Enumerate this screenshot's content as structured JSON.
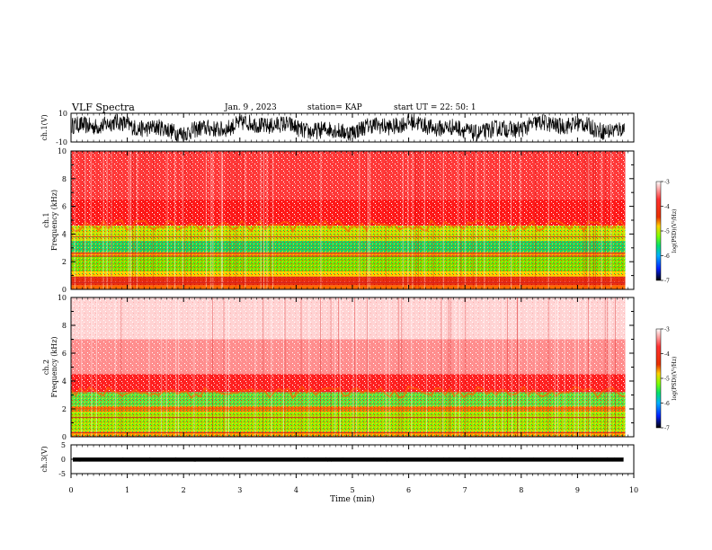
{
  "header": {
    "title": "VLF Spectra",
    "date": "Jan. 9 , 2023",
    "station": "station= KAP",
    "start": "start UT =  22: 50: 1"
  },
  "chart_data": [
    {
      "type": "line",
      "ylabel": "ch.1(V)",
      "ylim": [
        -10,
        10
      ],
      "y_ticks": [
        "10",
        "-10"
      ],
      "xlim": [
        0,
        9.85
      ],
      "color": "#000000"
    },
    {
      "type": "heatmap",
      "ylabel": "ch.1\nFrequency (kHz)",
      "ylim": [
        0,
        10
      ],
      "y_ticks": [
        "0",
        "2",
        "4",
        "6",
        "8",
        "10"
      ],
      "xlim": [
        0,
        9.85
      ],
      "colorbar": {
        "label": "log(PSD)(V²/Hz)",
        "range": [
          -7,
          -3
        ],
        "ticks": [
          "-3",
          "-4",
          "-5",
          "-6",
          "-7"
        ]
      }
    },
    {
      "type": "heatmap",
      "ylabel": "ch.2\nFrequency (kHz)",
      "ylim": [
        0,
        10
      ],
      "y_ticks": [
        "0",
        "2",
        "4",
        "6",
        "8",
        "10"
      ],
      "xlim": [
        0,
        9.85
      ],
      "colorbar": {
        "label": "log(PSD)(V²/Hz)",
        "range": [
          -7,
          -3
        ],
        "ticks": [
          "-3",
          "-4",
          "-5",
          "-6",
          "-7"
        ]
      }
    },
    {
      "type": "line",
      "ylabel": "ch.3(V)",
      "ylim": [
        -5,
        5
      ],
      "y_ticks": [
        "5",
        "0",
        "-5"
      ],
      "xlim": [
        0,
        10
      ],
      "x_ticks": [
        "0",
        "1",
        "2",
        "3",
        "4",
        "5",
        "6",
        "7",
        "8",
        "9",
        "10"
      ],
      "xlabel": "Time (min)",
      "color": "#000000"
    }
  ]
}
